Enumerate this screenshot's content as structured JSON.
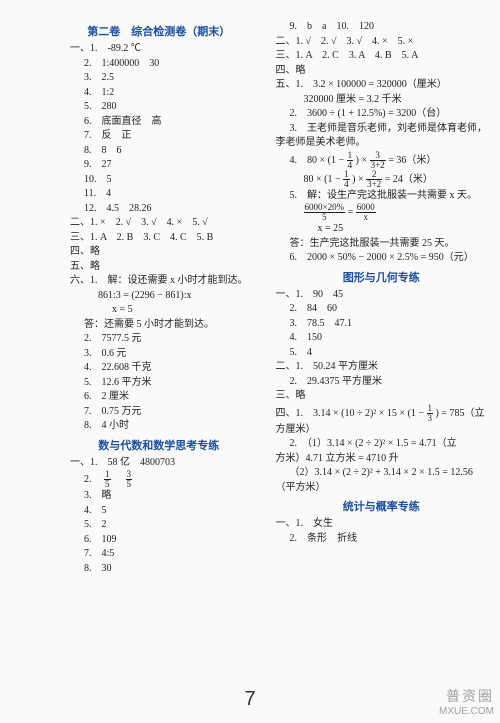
{
  "meta": {
    "pagenum": "7",
    "watermark_top": "普资圈",
    "watermark_bottom": "MXUE.COM"
  },
  "left": {
    "title1": "第二卷　综合检测卷（期末）",
    "l1": "一、1.　-89.2 ℃",
    "l2": "2.　1:400000　30",
    "l3": "3.　2.5",
    "l4": "4.　1:2",
    "l5": "5.　280",
    "l6": "6.　底面直径　高",
    "l7": "7.　反　正",
    "l8": "8.　8　6",
    "l9": "9.　27",
    "l10": "10.　5",
    "l11": "11.　4",
    "l12": "12.　4.5　28.26",
    "l13": "二、1. ×　2. √　3. √　4. ×　5. √",
    "l14": "三、1. A　2. B　3. C　4. C　5. B",
    "l15": "四、略",
    "l16": "五、略",
    "l17": "六、1.　解：设还需要 x 小时才能到达。",
    "l18": "861:3 = (2296 − 861):x",
    "l19": "x = 5",
    "l20": "答：还需要 5 小时才能到达。",
    "l21": "2.　7577.5 元",
    "l22": "3.　0.6 元",
    "l23": "4.　22.608 千克",
    "l24": "5.　12.6 平方米",
    "l25": "6.　2 厘米",
    "l26": "7.　0.75 万元",
    "l27": "8.　4 小时",
    "title2": "数与代数和数学思考专练",
    "l28": "一、1.　58 亿　4800703",
    "l29a": "2.　",
    "l29f1n": "1",
    "l29f1d": "5",
    "l29sep": "　",
    "l29f2n": "3",
    "l29f2d": "5",
    "l30": "3.　略",
    "l31": "4.　5",
    "l32": "5.　2",
    "l33": "6.　109",
    "l34": "7.　4:5",
    "l35": "8.　30"
  },
  "right": {
    "r1": "9.　b　a　10.　120",
    "r2": "二、1. √　2. √　3. √　4. ×　5. ×",
    "r3": "三、1. A　2. C　3. A　4. B　5. A",
    "r4": "四、略",
    "r5": "五、1.　3.2 × 100000 = 320000（厘米）",
    "r6": "320000 厘米 = 3.2 千米",
    "r7": "2.　3600 ÷ (1 + 12.5%) = 3200（台）",
    "r8": "3.　王老师是音乐老师，刘老师是体育老师，",
    "r9": "李老师是美术老师。",
    "r10a": "4.　80 ×",
    "r10p1": "(1 − ",
    "r10f1n": "1",
    "r10f1d": "4",
    "r10p2": ") ×",
    "r10f2n": "3",
    "r10f2d": "3+2",
    "r10p3": " = 36（米）",
    "r11a": "80 ×",
    "r11p1": "(1 − ",
    "r11f1n": "1",
    "r11f1d": "4",
    "r11p2": ") ×",
    "r11f2n": "2",
    "r11f2d": "3+2",
    "r11p3": " = 24（米）",
    "r12": "5.　解：设生产完这批服装一共需要 x 天。",
    "r13f1n": "6000×20%",
    "r13f1d": "5",
    "r13eq": " = ",
    "r13f2n": "6000",
    "r13f2d": "x",
    "r14": "x = 25",
    "r15": "答：生产完这批服装一共需要 25 天。",
    "r16": "6.　2000 × 50% − 2000 × 2.5% = 950（元）",
    "title3": "图形与几何专练",
    "r17": "一、1.　90　45",
    "r18": "2.　84　60",
    "r19": "3.　78.5　47.1",
    "r20": "4.　150",
    "r21": "5.　4",
    "r22": "二、1.　50.24 平方厘米",
    "r23": "2.　29.4375 平方厘米",
    "r24": "三、略",
    "r25a": "四、1.　3.14 × (10 ÷ 2)² × 15 × (1 − ",
    "r25fn": "1",
    "r25fd": "3",
    "r25b": ") = 785（立",
    "r26": "方厘米）",
    "r27": "2.　（1）3.14 × (2 ÷ 2)² × 1.5 = 4.71（立",
    "r28": "方米）4.71 立方米 = 4710 升",
    "r29": "（2）3.14 × (2 ÷ 2)² + 3.14 × 2 × 1.5 = 12.56",
    "r30": "（平方米）",
    "title4": "统计与概率专练",
    "r31": "一、1.　女生",
    "r32": "2.　条形　折线"
  }
}
